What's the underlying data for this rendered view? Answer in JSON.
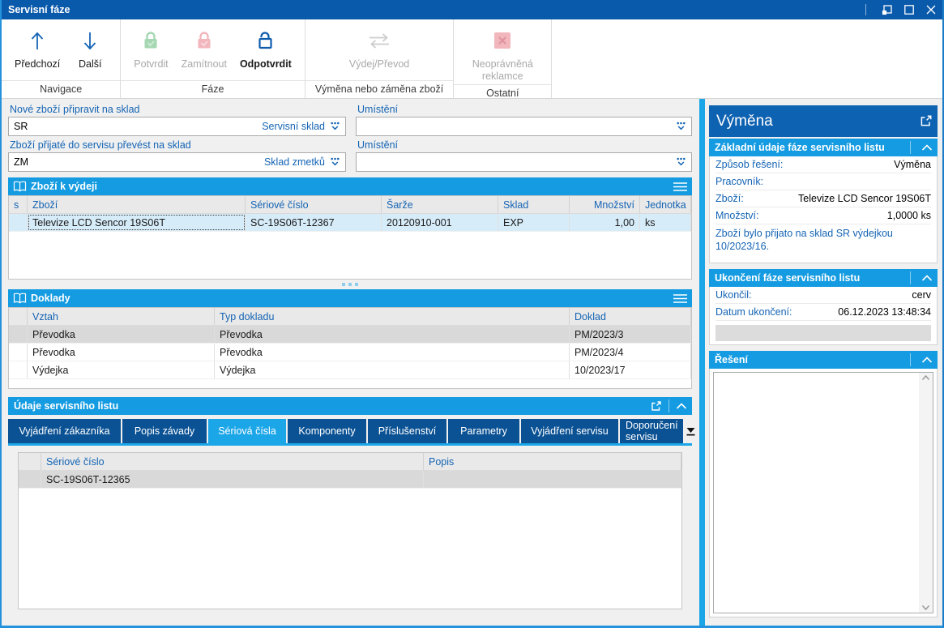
{
  "window": {
    "title": "Servisní fáze"
  },
  "colors": {
    "titlebar": "#0a5aab",
    "accent_blue": "#149be1",
    "active_tab_blue": "#1ba6e8",
    "dark_tab_blue": "#0b5294",
    "label_blue": "#1464b4",
    "detail_header_blue": "#0e62b2",
    "selection_blue": "#d7ecf9",
    "selection_gray": "#d9d9d9",
    "window_border_blue": "#2492dd",
    "disabled_green": "#a5d8b2",
    "disabled_red": "#f2b6bd"
  },
  "toolbar": {
    "groups": [
      {
        "caption": "Navigace",
        "buttons": [
          {
            "id": "predchozi",
            "label": "Předchozí",
            "icon": "arrow-up",
            "enabled": true,
            "primary": false
          },
          {
            "id": "dalsi",
            "label": "Další",
            "icon": "arrow-down",
            "enabled": true,
            "primary": false
          }
        ]
      },
      {
        "caption": "Fáze",
        "buttons": [
          {
            "id": "potvrdit",
            "label": "Potvrdit",
            "icon": "lock-green",
            "enabled": false,
            "primary": false
          },
          {
            "id": "zamitnout",
            "label": "Zamítnout",
            "icon": "lock-red",
            "enabled": false,
            "primary": false
          },
          {
            "id": "odpotvrdit",
            "label": "Odpotvrdit",
            "icon": "lock-open-blue",
            "enabled": true,
            "primary": true
          }
        ]
      },
      {
        "caption": "Výměna nebo záměna zboží",
        "buttons": [
          {
            "id": "vydej-prevod",
            "label": "Výdej/Převod",
            "icon": "transfer-arrows",
            "enabled": false,
            "primary": false
          }
        ]
      },
      {
        "caption": "Ostatní",
        "buttons": [
          {
            "id": "neopravnena-reklamce",
            "label": "Neoprávněná reklamce",
            "icon": "x-square-red",
            "enabled": false,
            "primary": false
          }
        ]
      }
    ]
  },
  "form": {
    "fields": [
      {
        "label": "Nové zboží připravit na sklad",
        "value": "SR",
        "suffix": "Servisní sklad"
      },
      {
        "label": "Umístění",
        "value": "",
        "suffix": ""
      },
      {
        "label": "Zboží přijaté do servisu převést na sklad",
        "value": "ZM",
        "suffix": "Sklad zmetků"
      },
      {
        "label": "Umístění",
        "value": "",
        "suffix": ""
      }
    ]
  },
  "goods_panel": {
    "title": "Zboží k výdeji",
    "columns": [
      "s",
      "Zboží",
      "Sériové číslo",
      "Šarže",
      "Sklad",
      "Množství",
      "Jednotka"
    ],
    "rows": [
      [
        "",
        "Televize LCD Sencor 19S06T",
        "SC-19S06T-12367",
        "20120910-001",
        "EXP",
        "1,00",
        "ks"
      ]
    ]
  },
  "documents_panel": {
    "title": "Doklady",
    "columns": [
      "",
      "Vztah",
      "Typ dokladu",
      "Doklad"
    ],
    "rows": [
      [
        "",
        "Převodka",
        "Převodka",
        "PM/2023/3"
      ],
      [
        "",
        "Převodka",
        "Převodka",
        "PM/2023/4"
      ],
      [
        "",
        "Výdejka",
        "Výdejka",
        "10/2023/17"
      ]
    ]
  },
  "service_sheet": {
    "title": "Údaje servisního listu",
    "tabs": [
      "Vyjádření zákazníka",
      "Popis závady",
      "Sériová čísla",
      "Komponenty",
      "Příslušenství",
      "Parametry",
      "Vyjádření servisu",
      "Doporučení servisu"
    ],
    "active_tab": "Sériová čísla",
    "columns": [
      "",
      "Sériové číslo",
      "Popis"
    ],
    "rows": [
      [
        "",
        "SC-19S06T-12365",
        ""
      ]
    ]
  },
  "detail_panel": {
    "title": "Výměna",
    "sections": [
      {
        "title": "Základní údaje fáze servisního listu",
        "rows": [
          {
            "label": "Způsob řešení:",
            "value": "Výměna"
          },
          {
            "label": "Pracovník:",
            "value": ""
          },
          {
            "label": "Zboží:",
            "value": "Televize LCD Sencor 19S06T"
          },
          {
            "label": "Množství:",
            "value": "1,0000 ks"
          }
        ],
        "note": "Zboží bylo přijato na sklad SR výdejkou 10/2023/16."
      },
      {
        "title": "Ukončení fáze servisního listu",
        "rows": [
          {
            "label": "Ukončil:",
            "value": "cerv"
          },
          {
            "label": "Datum ukončení:",
            "value": "06.12.2023 13:48:34"
          }
        ]
      },
      {
        "title": "Řešení",
        "rows": []
      }
    ]
  }
}
